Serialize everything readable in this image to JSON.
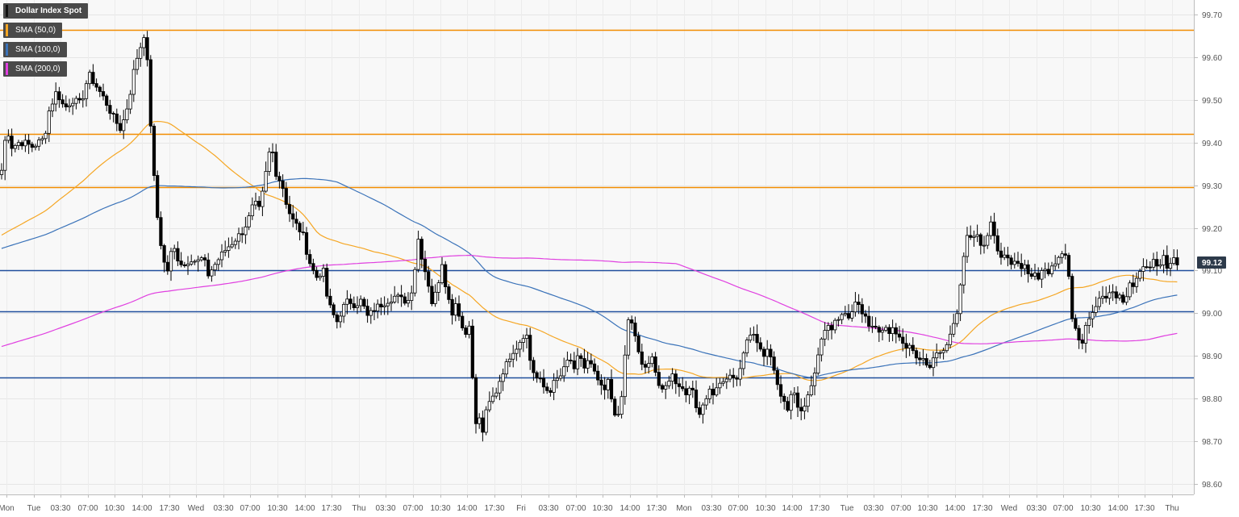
{
  "chart_data": {
    "type": "candlestick",
    "title": "Dollar Index Spot",
    "indicators": [
      {
        "name": "SMA (50,0)",
        "color": "#f5a623"
      },
      {
        "name": "SMA (100,0)",
        "color": "#3b73b9"
      },
      {
        "name": "SMA (200,0)",
        "color": "#e040e0"
      }
    ],
    "last_price_label": "99.12",
    "last_price": 99.12,
    "ylim": [
      98.56,
      99.73
    ],
    "y_ticks": [
      "99.70",
      "99.60",
      "99.50",
      "99.40",
      "99.30",
      "99.20",
      "99.10",
      "99.00",
      "98.90",
      "98.80",
      "98.70",
      "98.60"
    ],
    "x_ticks": [
      "Mon",
      "Tue",
      "03:30",
      "07:00",
      "10:30",
      "14:00",
      "17:30",
      "Wed",
      "03:30",
      "07:00",
      "10:30",
      "14:00",
      "17:30",
      "Thu",
      "03:30",
      "07:00",
      "10:30",
      "14:00",
      "17:30",
      "Fri",
      "03:30",
      "07:00",
      "10:30",
      "14:00",
      "17:30",
      "Mon",
      "03:30",
      "07:00",
      "10:30",
      "14:00",
      "17:30",
      "Tue",
      "03:30",
      "07:00",
      "10:30",
      "14:00",
      "17:30",
      "Wed",
      "03:30",
      "07:00",
      "10:30",
      "14:00",
      "17:30",
      "Thu"
    ],
    "horizontal_levels": [
      {
        "value": 99.665,
        "color": "#f28c00"
      },
      {
        "value": 99.42,
        "color": "#f28c00"
      },
      {
        "value": 99.295,
        "color": "#f28c00"
      },
      {
        "value": 99.1,
        "color": "#1f4e9c"
      },
      {
        "value": 99.005,
        "color": "#1f4e9c"
      },
      {
        "value": 98.85,
        "color": "#1f4e9c"
      }
    ],
    "price_path": [
      [
        0,
        99.31
      ],
      [
        4,
        99.36
      ],
      [
        8,
        99.44
      ],
      [
        12,
        99.41
      ],
      [
        16,
        99.38
      ],
      [
        20,
        99.4
      ],
      [
        30,
        99.4
      ],
      [
        40,
        99.39
      ],
      [
        55,
        99.41
      ],
      [
        60,
        99.47
      ],
      [
        70,
        99.52
      ],
      [
        80,
        99.48
      ],
      [
        90,
        99.5
      ],
      [
        100,
        99.49
      ],
      [
        110,
        99.56
      ],
      [
        120,
        99.53
      ],
      [
        130,
        99.5
      ],
      [
        140,
        99.46
      ],
      [
        150,
        99.43
      ],
      [
        160,
        99.5
      ],
      [
        165,
        99.56
      ],
      [
        170,
        99.6
      ],
      [
        175,
        99.63
      ],
      [
        178,
        99.66
      ],
      [
        183,
        99.58
      ],
      [
        188,
        99.4
      ],
      [
        193,
        99.26
      ],
      [
        198,
        99.18
      ],
      [
        203,
        99.12
      ],
      [
        208,
        99.1
      ],
      [
        214,
        99.16
      ],
      [
        220,
        99.13
      ],
      [
        228,
        99.11
      ],
      [
        236,
        99.13
      ],
      [
        244,
        99.12
      ],
      [
        252,
        99.13
      ],
      [
        258,
        99.09
      ],
      [
        265,
        99.11
      ],
      [
        272,
        99.13
      ],
      [
        280,
        99.15
      ],
      [
        290,
        99.17
      ],
      [
        300,
        99.19
      ],
      [
        308,
        99.22
      ],
      [
        315,
        99.26
      ],
      [
        322,
        99.24
      ],
      [
        328,
        99.31
      ],
      [
        336,
        99.4
      ],
      [
        342,
        99.33
      ],
      [
        350,
        99.3
      ],
      [
        356,
        99.25
      ],
      [
        362,
        99.22
      ],
      [
        370,
        99.2
      ],
      [
        376,
        99.18
      ],
      [
        382,
        99.13
      ],
      [
        388,
        99.1
      ],
      [
        394,
        99.08
      ],
      [
        400,
        99.11
      ],
      [
        406,
        99.03
      ],
      [
        412,
        99.0
      ],
      [
        418,
        98.98
      ],
      [
        424,
        99.01
      ],
      [
        432,
        99.03
      ],
      [
        440,
        99.02
      ],
      [
        448,
        99.03
      ],
      [
        456,
        98.99
      ],
      [
        464,
        99.01
      ],
      [
        472,
        99.02
      ],
      [
        480,
        99.03
      ],
      [
        490,
        99.04
      ],
      [
        500,
        99.03
      ],
      [
        508,
        99.03
      ],
      [
        514,
        99.1
      ],
      [
        519,
        99.18
      ],
      [
        524,
        99.12
      ],
      [
        530,
        99.08
      ],
      [
        536,
        99.02
      ],
      [
        542,
        99.06
      ],
      [
        548,
        99.12
      ],
      [
        554,
        99.05
      ],
      [
        560,
        99.0
      ],
      [
        566,
        99.03
      ],
      [
        572,
        98.97
      ],
      [
        578,
        98.95
      ],
      [
        583,
        98.99
      ],
      [
        588,
        98.73
      ],
      [
        593,
        98.76
      ],
      [
        598,
        98.72
      ],
      [
        604,
        98.78
      ],
      [
        610,
        98.8
      ],
      [
        616,
        98.82
      ],
      [
        622,
        98.86
      ],
      [
        628,
        98.88
      ],
      [
        634,
        98.91
      ],
      [
        640,
        98.92
      ],
      [
        646,
        98.94
      ],
      [
        652,
        98.96
      ],
      [
        658,
        98.88
      ],
      [
        664,
        98.85
      ],
      [
        670,
        98.84
      ],
      [
        676,
        98.82
      ],
      [
        682,
        98.82
      ],
      [
        688,
        98.84
      ],
      [
        694,
        98.85
      ],
      [
        700,
        98.87
      ],
      [
        706,
        98.9
      ],
      [
        712,
        98.86
      ],
      [
        718,
        98.91
      ],
      [
        724,
        98.87
      ],
      [
        730,
        98.89
      ],
      [
        736,
        98.86
      ],
      [
        742,
        98.84
      ],
      [
        748,
        98.81
      ],
      [
        754,
        98.84
      ],
      [
        760,
        98.78
      ],
      [
        766,
        98.75
      ],
      [
        772,
        98.82
      ],
      [
        778,
        98.99
      ],
      [
        784,
        98.97
      ],
      [
        790,
        98.92
      ],
      [
        796,
        98.88
      ],
      [
        802,
        98.86
      ],
      [
        808,
        98.91
      ],
      [
        814,
        98.85
      ],
      [
        820,
        98.81
      ],
      [
        826,
        98.83
      ],
      [
        832,
        98.86
      ],
      [
        838,
        98.84
      ],
      [
        844,
        98.83
      ],
      [
        850,
        98.81
      ],
      [
        856,
        98.84
      ],
      [
        862,
        98.78
      ],
      [
        868,
        98.77
      ],
      [
        874,
        98.8
      ],
      [
        880,
        98.82
      ],
      [
        886,
        98.81
      ],
      [
        892,
        98.84
      ],
      [
        898,
        98.83
      ],
      [
        904,
        98.86
      ],
      [
        910,
        98.84
      ],
      [
        916,
        98.86
      ],
      [
        922,
        98.91
      ],
      [
        928,
        98.94
      ],
      [
        934,
        98.96
      ],
      [
        940,
        98.93
      ],
      [
        946,
        98.9
      ],
      [
        952,
        98.92
      ],
      [
        958,
        98.88
      ],
      [
        964,
        98.84
      ],
      [
        970,
        98.8
      ],
      [
        976,
        98.77
      ],
      [
        982,
        98.82
      ],
      [
        988,
        98.79
      ],
      [
        994,
        98.77
      ],
      [
        1000,
        98.8
      ],
      [
        1006,
        98.84
      ],
      [
        1012,
        98.88
      ],
      [
        1018,
        98.93
      ],
      [
        1024,
        98.98
      ],
      [
        1030,
        98.96
      ],
      [
        1036,
        98.99
      ],
      [
        1042,
        98.99
      ],
      [
        1048,
        99.0
      ],
      [
        1054,
        98.99
      ],
      [
        1060,
        99.02
      ],
      [
        1066,
        99.01
      ],
      [
        1072,
        98.99
      ],
      [
        1078,
        98.96
      ],
      [
        1084,
        98.98
      ],
      [
        1090,
        98.96
      ],
      [
        1096,
        98.97
      ],
      [
        1102,
        98.95
      ],
      [
        1108,
        98.96
      ],
      [
        1114,
        98.95
      ],
      [
        1120,
        98.93
      ],
      [
        1126,
        98.92
      ],
      [
        1132,
        98.91
      ],
      [
        1138,
        98.88
      ],
      [
        1144,
        98.9
      ],
      [
        1150,
        98.87
      ],
      [
        1156,
        98.89
      ],
      [
        1162,
        98.9
      ],
      [
        1168,
        98.91
      ],
      [
        1174,
        98.93
      ],
      [
        1180,
        98.96
      ],
      [
        1186,
        99.0
      ],
      [
        1190,
        99.06
      ],
      [
        1195,
        99.13
      ],
      [
        1200,
        99.19
      ],
      [
        1205,
        99.17
      ],
      [
        1210,
        99.19
      ],
      [
        1216,
        99.16
      ],
      [
        1222,
        99.17
      ],
      [
        1228,
        99.22
      ],
      [
        1234,
        99.16
      ],
      [
        1240,
        99.12
      ],
      [
        1246,
        99.14
      ],
      [
        1252,
        99.11
      ],
      [
        1258,
        99.13
      ],
      [
        1264,
        99.1
      ],
      [
        1270,
        99.12
      ],
      [
        1276,
        99.09
      ],
      [
        1282,
        99.1
      ],
      [
        1288,
        99.08
      ],
      [
        1294,
        99.1
      ],
      [
        1300,
        99.09
      ],
      [
        1306,
        99.12
      ],
      [
        1312,
        99.13
      ],
      [
        1318,
        99.15
      ],
      [
        1324,
        99.12
      ],
      [
        1328,
        99.0
      ],
      [
        1334,
        98.96
      ],
      [
        1340,
        98.92
      ],
      [
        1346,
        98.97
      ],
      [
        1352,
        98.99
      ],
      [
        1358,
        99.02
      ],
      [
        1364,
        99.05
      ],
      [
        1370,
        99.03
      ],
      [
        1376,
        99.06
      ],
      [
        1382,
        99.04
      ],
      [
        1388,
        99.05
      ],
      [
        1394,
        99.02
      ],
      [
        1400,
        99.07
      ],
      [
        1406,
        99.05
      ],
      [
        1412,
        99.1
      ],
      [
        1418,
        99.12
      ],
      [
        1424,
        99.09
      ],
      [
        1430,
        99.12
      ],
      [
        1436,
        99.1
      ],
      [
        1442,
        99.13
      ],
      [
        1448,
        99.11
      ],
      [
        1454,
        99.13
      ],
      [
        1460,
        99.12
      ]
    ]
  }
}
